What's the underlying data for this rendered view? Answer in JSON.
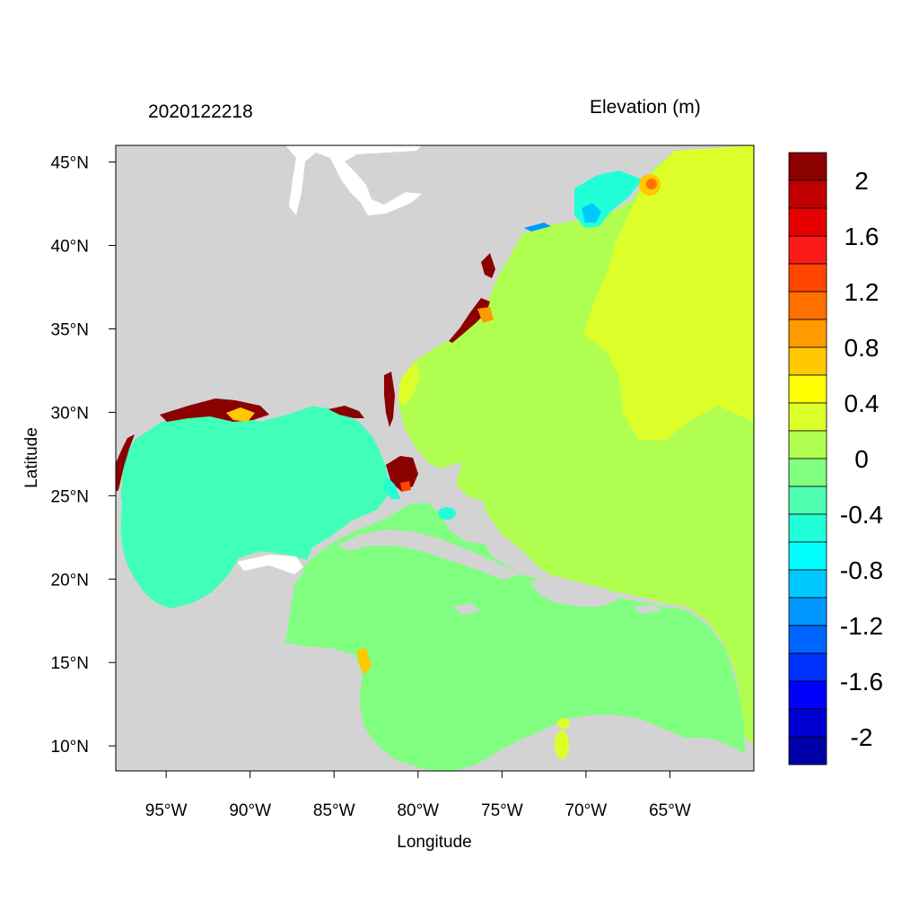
{
  "map": {
    "timestamp": "2020122218",
    "variable_title": "Elevation (m)",
    "xlabel": "Longitude",
    "ylabel": "Latitude",
    "lon_range": [
      -98,
      -60
    ],
    "lat_range": [
      8.5,
      46
    ],
    "x_ticks": [
      {
        "value": -95,
        "label": "95°W"
      },
      {
        "value": -90,
        "label": "90°W"
      },
      {
        "value": -85,
        "label": "85°W"
      },
      {
        "value": -80,
        "label": "80°W"
      },
      {
        "value": -75,
        "label": "75°W"
      },
      {
        "value": -70,
        "label": "70°W"
      },
      {
        "value": -65,
        "label": "65°W"
      }
    ],
    "y_ticks": [
      {
        "value": 45,
        "label": "45°N"
      },
      {
        "value": 40,
        "label": "40°N"
      },
      {
        "value": 35,
        "label": "35°N"
      },
      {
        "value": 30,
        "label": "30°N"
      },
      {
        "value": 25,
        "label": "25°N"
      },
      {
        "value": 20,
        "label": "20°N"
      },
      {
        "value": 15,
        "label": "15°N"
      },
      {
        "value": 10,
        "label": "10°N"
      }
    ],
    "land_color": "#d3d3d3"
  },
  "colorbar": {
    "colors_top_to_bottom": [
      "#8b0000",
      "#c00000",
      "#e60000",
      "#ff1a1a",
      "#ff4500",
      "#ff7000",
      "#ff9a00",
      "#ffc800",
      "#ffff00",
      "#dcff2a",
      "#b0ff50",
      "#80ff80",
      "#50ffb0",
      "#20ffd8",
      "#00ffff",
      "#00c8ff",
      "#0096ff",
      "#0064ff",
      "#0032ff",
      "#0000ff",
      "#0000d0",
      "#0000a8"
    ],
    "labels": [
      "2",
      "1.6",
      "1.2",
      "0.8",
      "0.4",
      "0",
      "-0.4",
      "-0.8",
      "-1.2",
      "-1.6",
      "-2"
    ]
  }
}
